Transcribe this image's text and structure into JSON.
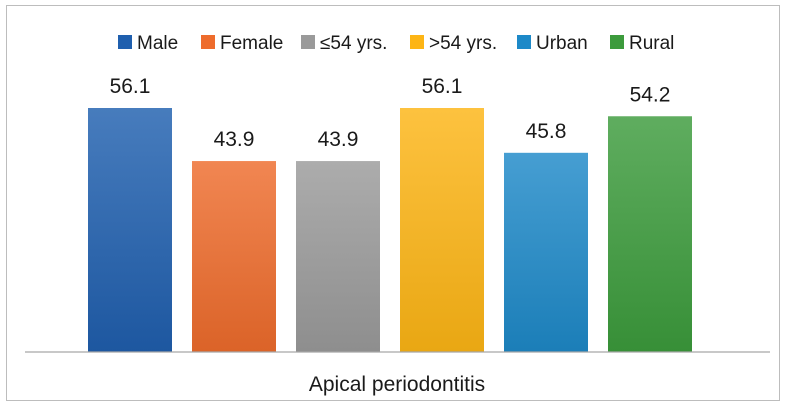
{
  "chart_data": {
    "type": "bar",
    "categories": [
      "Apical periodontitis"
    ],
    "series": [
      {
        "name": "Male",
        "values": [
          56.1
        ],
        "color": "#1f5fae"
      },
      {
        "name": "Female",
        "values": [
          43.9
        ],
        "color": "#ee6c2c"
      },
      {
        "name": "≤54 yrs.",
        "values": [
          43.9
        ],
        "color": "#9a9a9a"
      },
      {
        "name": ">54 yrs.",
        "values": [
          56.1
        ],
        "color": "#fdb515"
      },
      {
        "name": "Urban",
        "values": [
          45.8
        ],
        "color": "#1d89c8"
      },
      {
        "name": "Rural",
        "values": [
          54.2
        ],
        "color": "#3c9b3c"
      }
    ],
    "value_labels": [
      "56.1",
      "43.9",
      "43.9",
      "56.1",
      "45.8",
      "54.2"
    ],
    "xlabel": "Apical periodontitis",
    "ylabel": "",
    "ylim": [
      0,
      70
    ],
    "legend": "top",
    "grid": false
  }
}
